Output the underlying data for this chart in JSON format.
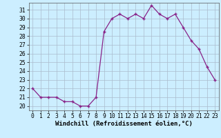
{
  "hours": [
    0,
    1,
    2,
    3,
    4,
    5,
    6,
    7,
    8,
    9,
    10,
    11,
    12,
    13,
    14,
    15,
    16,
    17,
    18,
    19,
    20,
    21,
    22,
    23
  ],
  "values": [
    22,
    21,
    21,
    21,
    20.5,
    20.5,
    20,
    20,
    21,
    28.5,
    30,
    30.5,
    30,
    30.5,
    30,
    31.5,
    30.5,
    30,
    30.5,
    29,
    27.5,
    26.5,
    24.5,
    23
  ],
  "line_color": "#882288",
  "marker": "+",
  "bg_color": "#cceeff",
  "grid_color": "#aabbcc",
  "xlabel": "Windchill (Refroidissement éolien,°C)",
  "ylim": [
    19.5,
    31.8
  ],
  "xlim": [
    -0.5,
    23.5
  ],
  "yticks": [
    20,
    21,
    22,
    23,
    24,
    25,
    26,
    27,
    28,
    29,
    30,
    31
  ],
  "xticks": [
    0,
    1,
    2,
    3,
    4,
    5,
    6,
    7,
    8,
    9,
    10,
    11,
    12,
    13,
    14,
    15,
    16,
    17,
    18,
    19,
    20,
    21,
    22,
    23
  ],
  "tick_fontsize": 5.8,
  "label_fontsize": 6.5
}
